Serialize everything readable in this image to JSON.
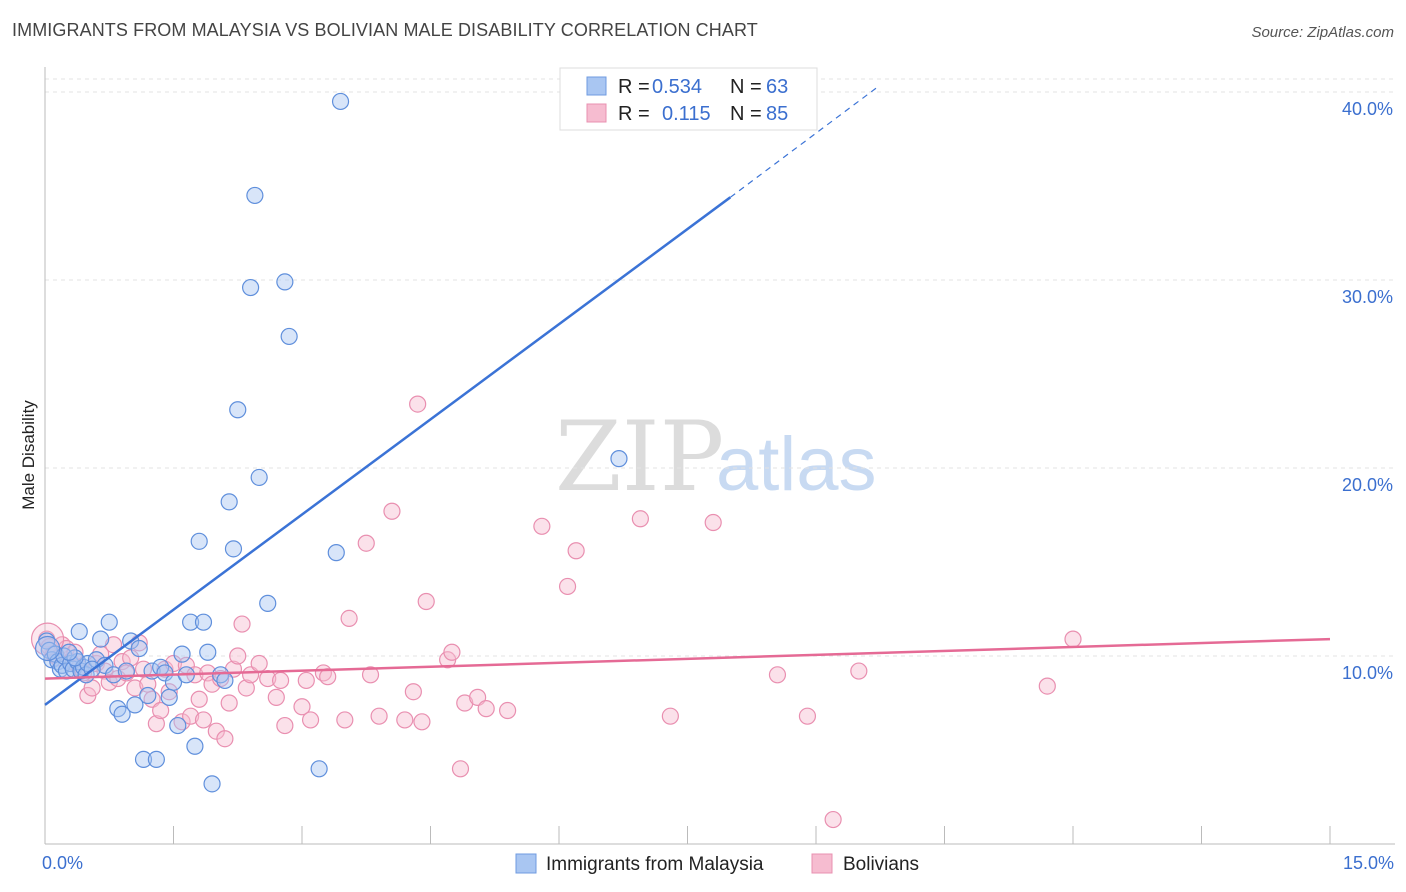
{
  "title": "IMMIGRANTS FROM MALAYSIA VS BOLIVIAN MALE DISABILITY CORRELATION CHART",
  "source": "Source: ZipAtlas.com",
  "watermark": {
    "zip": "ZIP",
    "atlas": "atlas"
  },
  "colors": {
    "blue": "#3b73d6",
    "pink": "#e56a95",
    "blue_fill": "#a9c6f2",
    "pink_fill": "#f6bcd0",
    "axis_text": "#3b6fcf"
  },
  "legend_top": {
    "rows": [
      {
        "r_label": "R =",
        "r_value": "0.534",
        "n_label": "N =",
        "n_value": "63"
      },
      {
        "r_label": "R =",
        "r_value": "0.115",
        "n_label": "N =",
        "n_value": "85"
      }
    ]
  },
  "legend_bottom": [
    "Immigrants from Malaysia",
    "Bolivians"
  ],
  "chart_data": {
    "type": "scatter",
    "title": "IMMIGRANTS FROM MALAYSIA VS BOLIVIAN MALE DISABILITY CORRELATION CHART",
    "xlabel": "",
    "ylabel": "Male Disability",
    "xlim": [
      0,
      15
    ],
    "ylim": [
      0,
      40.8
    ],
    "x_tick_labels": [
      "0.0%",
      "15.0%"
    ],
    "y_ticks": [
      10,
      20,
      30,
      40
    ],
    "y_tick_labels": [
      "10.0%",
      "20.0%",
      "30.0%",
      "40.0%"
    ],
    "grid": true,
    "series": [
      {
        "name": "Immigrants from Malaysia",
        "color": "#3b73d6",
        "trend": {
          "x0": 0,
          "y0": 7.4,
          "x1": 8.0,
          "y1": 34.4,
          "dashed_to_x": 9.7,
          "dashed_to_y": 40.2
        },
        "points": [
          [
            0.02,
            10.8
          ],
          [
            0.05,
            10.3
          ],
          [
            0.08,
            9.8
          ],
          [
            0.12,
            10.1
          ],
          [
            0.15,
            9.7
          ],
          [
            0.18,
            9.3
          ],
          [
            0.2,
            9.5
          ],
          [
            0.22,
            10.0
          ],
          [
            0.25,
            9.2
          ],
          [
            0.3,
            9.6
          ],
          [
            0.33,
            9.3
          ],
          [
            0.38,
            9.7
          ],
          [
            0.4,
            11.3
          ],
          [
            0.42,
            9.2
          ],
          [
            0.45,
            9.4
          ],
          [
            0.48,
            9.0
          ],
          [
            0.5,
            9.6
          ],
          [
            0.6,
            9.8
          ],
          [
            0.65,
            10.9
          ],
          [
            0.7,
            9.5
          ],
          [
            0.75,
            11.8
          ],
          [
            0.8,
            9.0
          ],
          [
            0.85,
            7.2
          ],
          [
            0.9,
            6.9
          ],
          [
            0.95,
            9.2
          ],
          [
            1.0,
            10.8
          ],
          [
            1.05,
            7.4
          ],
          [
            1.1,
            10.4
          ],
          [
            1.15,
            4.5
          ],
          [
            1.2,
            7.9
          ],
          [
            1.25,
            9.2
          ],
          [
            1.3,
            4.5
          ],
          [
            1.35,
            9.4
          ],
          [
            1.4,
            9.1
          ],
          [
            1.5,
            8.6
          ],
          [
            1.55,
            6.3
          ],
          [
            1.6,
            10.1
          ],
          [
            1.65,
            9.0
          ],
          [
            1.7,
            11.8
          ],
          [
            1.75,
            5.2
          ],
          [
            1.8,
            16.1
          ],
          [
            1.85,
            11.8
          ],
          [
            1.9,
            10.2
          ],
          [
            1.95,
            3.2
          ],
          [
            2.05,
            9.0
          ],
          [
            2.1,
            8.7
          ],
          [
            2.15,
            18.2
          ],
          [
            2.2,
            15.7
          ],
          [
            2.25,
            23.1
          ],
          [
            2.4,
            29.6
          ],
          [
            2.45,
            34.5
          ],
          [
            2.5,
            19.5
          ],
          [
            2.6,
            12.8
          ],
          [
            2.8,
            29.9
          ],
          [
            2.85,
            27.0
          ],
          [
            3.2,
            4.0
          ],
          [
            3.4,
            15.5
          ],
          [
            3.45,
            39.5
          ],
          [
            6.7,
            20.5
          ],
          [
            0.35,
            9.9
          ],
          [
            0.55,
            9.3
          ],
          [
            0.28,
            10.2
          ],
          [
            1.45,
            7.8
          ]
        ]
      },
      {
        "name": "Bolivians",
        "color": "#e56a95",
        "trend": {
          "x0": 0,
          "y0": 8.8,
          "x1": 15,
          "y1": 10.9
        },
        "points": [
          [
            0.02,
            10.9
          ],
          [
            0.05,
            10.5
          ],
          [
            0.1,
            10.1
          ],
          [
            0.15,
            9.9
          ],
          [
            0.2,
            10.6
          ],
          [
            0.25,
            10.4
          ],
          [
            0.3,
            9.7
          ],
          [
            0.35,
            10.2
          ],
          [
            0.4,
            9.4
          ],
          [
            0.45,
            9.1
          ],
          [
            0.5,
            7.9
          ],
          [
            0.55,
            8.3
          ],
          [
            0.6,
            9.6
          ],
          [
            0.65,
            10.1
          ],
          [
            0.7,
            9.2
          ],
          [
            0.75,
            8.6
          ],
          [
            0.8,
            10.6
          ],
          [
            0.85,
            8.8
          ],
          [
            0.9,
            9.7
          ],
          [
            0.95,
            9.1
          ],
          [
            1.0,
            9.9
          ],
          [
            1.05,
            8.3
          ],
          [
            1.1,
            10.7
          ],
          [
            1.15,
            9.3
          ],
          [
            1.2,
            8.5
          ],
          [
            1.25,
            7.7
          ],
          [
            1.3,
            6.4
          ],
          [
            1.35,
            7.1
          ],
          [
            1.4,
            9.3
          ],
          [
            1.45,
            8.1
          ],
          [
            1.5,
            9.6
          ],
          [
            1.6,
            6.5
          ],
          [
            1.65,
            9.5
          ],
          [
            1.7,
            6.8
          ],
          [
            1.75,
            9.0
          ],
          [
            1.8,
            7.7
          ],
          [
            1.85,
            6.6
          ],
          [
            1.9,
            9.1
          ],
          [
            1.95,
            8.5
          ],
          [
            2.0,
            6.0
          ],
          [
            2.05,
            8.8
          ],
          [
            2.1,
            5.6
          ],
          [
            2.15,
            7.5
          ],
          [
            2.2,
            9.3
          ],
          [
            2.25,
            10.0
          ],
          [
            2.3,
            11.7
          ],
          [
            2.35,
            8.3
          ],
          [
            2.4,
            9.0
          ],
          [
            2.5,
            9.6
          ],
          [
            2.6,
            8.8
          ],
          [
            2.7,
            7.8
          ],
          [
            2.75,
            8.7
          ],
          [
            2.8,
            6.3
          ],
          [
            3.0,
            7.3
          ],
          [
            3.05,
            8.7
          ],
          [
            3.1,
            6.6
          ],
          [
            3.25,
            9.1
          ],
          [
            3.3,
            8.9
          ],
          [
            3.5,
            6.6
          ],
          [
            3.55,
            12.0
          ],
          [
            3.75,
            16.0
          ],
          [
            3.8,
            9.0
          ],
          [
            3.9,
            6.8
          ],
          [
            4.05,
            17.7
          ],
          [
            4.2,
            6.6
          ],
          [
            4.3,
            8.1
          ],
          [
            4.35,
            23.4
          ],
          [
            4.4,
            6.5
          ],
          [
            4.45,
            12.9
          ],
          [
            4.7,
            9.8
          ],
          [
            4.75,
            10.2
          ],
          [
            4.85,
            4.0
          ],
          [
            4.9,
            7.5
          ],
          [
            5.05,
            7.8
          ],
          [
            5.15,
            7.2
          ],
          [
            5.4,
            7.1
          ],
          [
            5.8,
            16.9
          ],
          [
            6.1,
            13.7
          ],
          [
            6.2,
            15.6
          ],
          [
            6.95,
            17.3
          ],
          [
            7.3,
            6.8
          ],
          [
            7.8,
            17.1
          ],
          [
            8.55,
            9.0
          ],
          [
            8.9,
            6.8
          ],
          [
            9.2,
            1.3
          ]
        ]
      }
    ],
    "extra_pink_points": [
      [
        9.5,
        9.2
      ],
      [
        11.7,
        8.4
      ],
      [
        12.0,
        10.9
      ]
    ]
  }
}
